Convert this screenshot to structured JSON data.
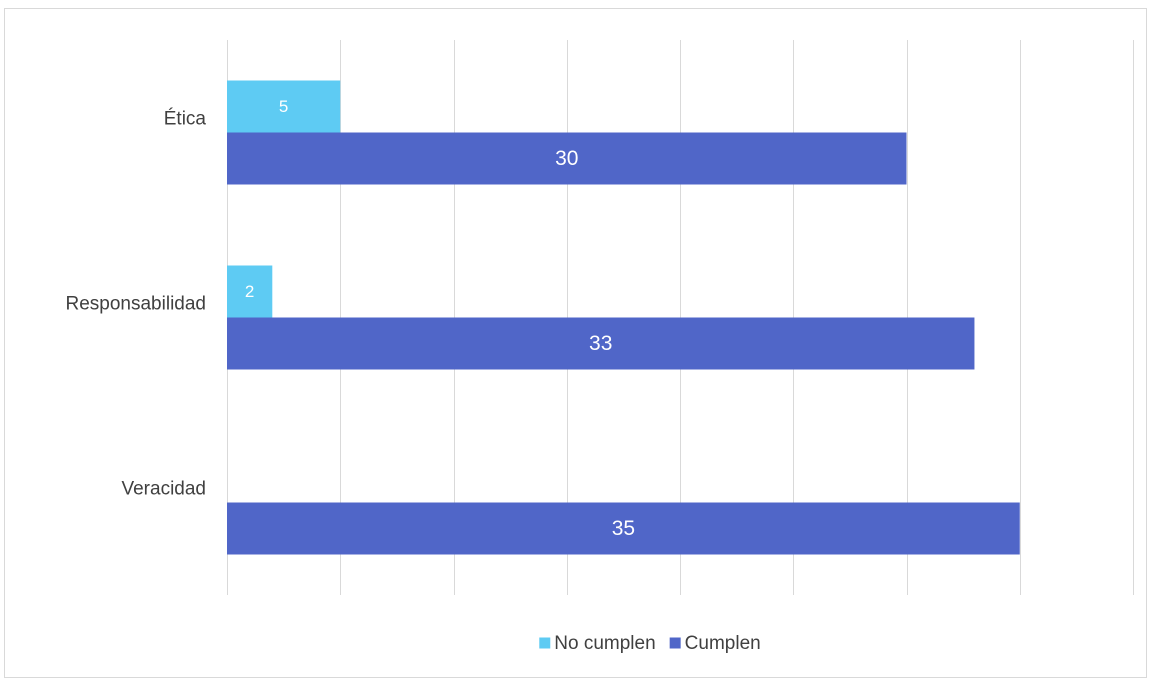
{
  "chart_data": {
    "type": "bar",
    "orientation": "horizontal",
    "title": "",
    "xlabel": "",
    "ylabel": "",
    "categories": [
      "Ética",
      "Responsabilidad",
      "Veracidad"
    ],
    "series": [
      {
        "name": "No cumplen",
        "color": "#5ecbf3",
        "values": [
          5,
          2,
          null
        ]
      },
      {
        "name": "Cumplen",
        "color": "#5066c8",
        "values": [
          30,
          33,
          35
        ]
      }
    ],
    "xlim": [
      0,
      40
    ],
    "grid": true,
    "gridline_color": "#d9d9d9",
    "legend_position": "bottom"
  }
}
